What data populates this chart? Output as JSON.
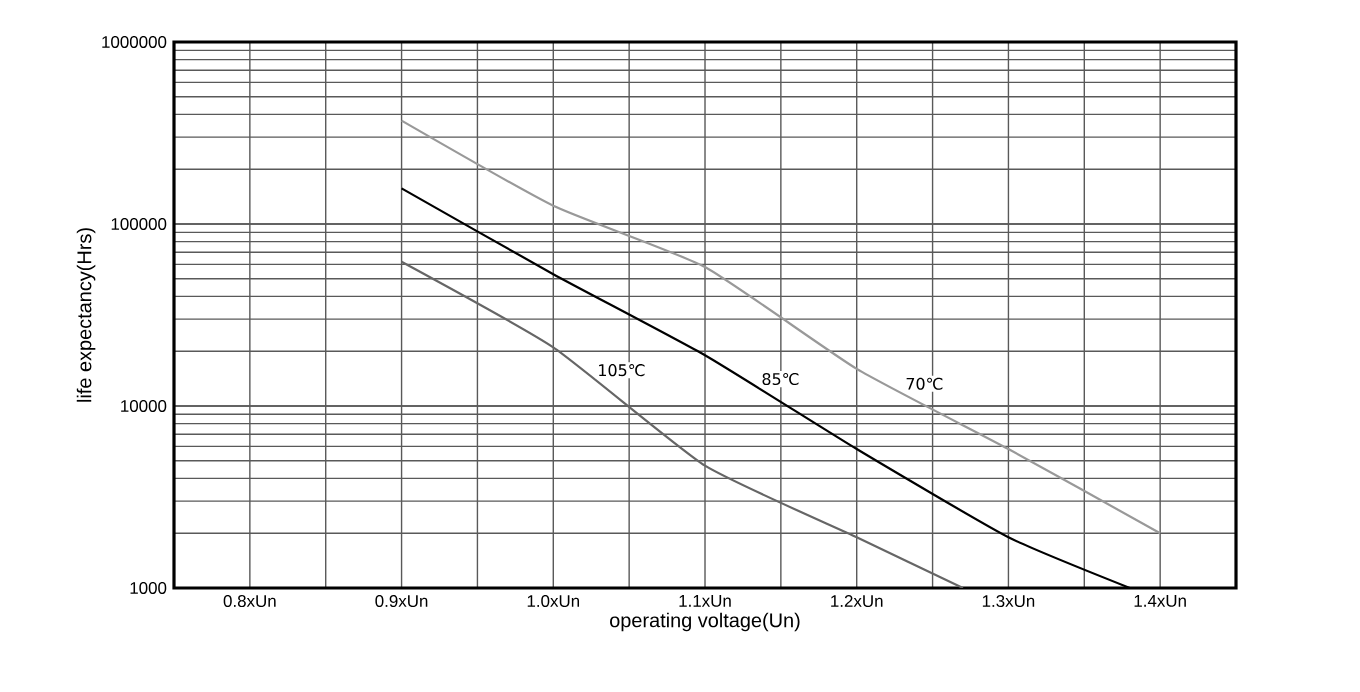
{
  "chart_data": {
    "type": "line",
    "xlabel": "operating  voltage(Un)",
    "ylabel": "life expectancy(Hrs)",
    "log": "y",
    "grid": true,
    "marker": "none",
    "line_style": "solid",
    "xlim": [
      0.75,
      1.45
    ],
    "ylim": [
      1000,
      1000000
    ],
    "xticks": [
      {
        "value": 0.8,
        "label": "0.8xUn"
      },
      {
        "value": 0.85,
        "label": null
      },
      {
        "value": 0.9,
        "label": "0.9xUn"
      },
      {
        "value": 0.95,
        "label": null
      },
      {
        "value": 1.0,
        "label": "1.0xUn"
      },
      {
        "value": 1.05,
        "label": null
      },
      {
        "value": 1.1,
        "label": "1.1xUn"
      },
      {
        "value": 1.15,
        "label": null
      },
      {
        "value": 1.2,
        "label": "1.2xUn"
      },
      {
        "value": 1.25,
        "label": null
      },
      {
        "value": 1.3,
        "label": "1.3xUn"
      },
      {
        "value": 1.35,
        "label": null
      },
      {
        "value": 1.4,
        "label": "1.4xUn"
      }
    ],
    "yticks": [
      1000,
      10000,
      100000,
      1000000
    ],
    "series": [
      {
        "name": "105℃",
        "color": "#666666",
        "x": [
          0.9,
          1.0,
          1.1,
          1.2,
          1.27
        ],
        "values": [
          62000,
          21000,
          4700,
          1900,
          1000
        ]
      },
      {
        "name": "85℃",
        "color": "#000000",
        "x": [
          0.9,
          1.0,
          1.1,
          1.2,
          1.3,
          1.38
        ],
        "values": [
          157000,
          53000,
          19000,
          5800,
          1900,
          1000
        ]
      },
      {
        "name": "70℃",
        "color": "#999999",
        "x": [
          0.9,
          1.0,
          1.1,
          1.2,
          1.3,
          1.4
        ],
        "values": [
          370000,
          126000,
          58000,
          16000,
          5800,
          2000
        ]
      }
    ]
  }
}
